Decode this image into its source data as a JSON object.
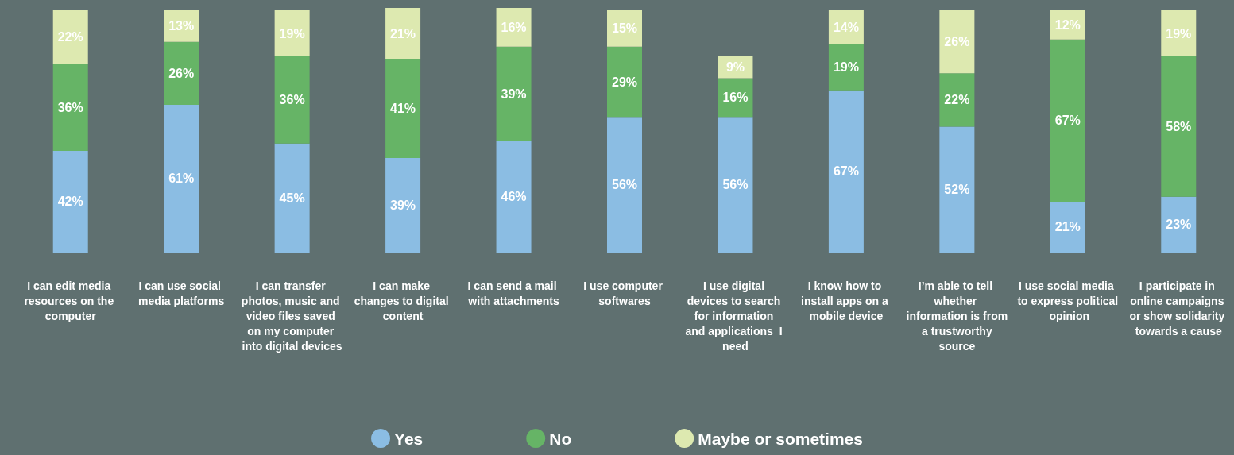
{
  "chart_data": {
    "type": "bar",
    "stacked": true,
    "legend": "bottom",
    "categories": [
      "I can edit media resources on the computer",
      "I can use social media platforms",
      "I can transfer photos, music and video files saved on my computer into digital devices",
      "I can make changes to digital content",
      "I can send a mail with attachments",
      "I use computer softwares",
      "I use digital devices to search for information and applications  I need",
      "I know how to install apps on a mobile device",
      "I’m able to tell whether information is from a trustworthy source",
      "I use social media to express political opinion",
      "I participate in online campaigns or show solidarity towards a cause"
    ],
    "series": [
      {
        "name": "Yes",
        "color": "#8bbde3",
        "values": [
          42,
          61,
          45,
          39,
          46,
          56,
          56,
          67,
          52,
          21,
          23
        ],
        "value_labels": [
          "42%",
          "61%",
          "45%",
          "39%",
          "46%",
          "56%",
          "56%",
          "67%",
          "52%",
          "21%",
          "23%"
        ]
      },
      {
        "name": "No",
        "color": "#66b466",
        "values": [
          36,
          26,
          36,
          41,
          39,
          29,
          16,
          19,
          22,
          67,
          58
        ],
        "value_labels": [
          "36%",
          "26%",
          "36%",
          "41%",
          "39%",
          "29%",
          "16%",
          "19%",
          "22%",
          "67%",
          "58%"
        ]
      },
      {
        "name": "Maybe or sometimes",
        "color": "#dde9b0",
        "values": [
          22,
          13,
          19,
          21,
          16,
          15,
          9,
          14,
          26,
          12,
          19
        ],
        "value_labels": [
          "22%",
          "13%",
          "19%",
          "21%",
          "16%",
          "15%",
          "9%",
          "14%",
          "26%",
          "12%",
          "19%"
        ]
      }
    ]
  }
}
